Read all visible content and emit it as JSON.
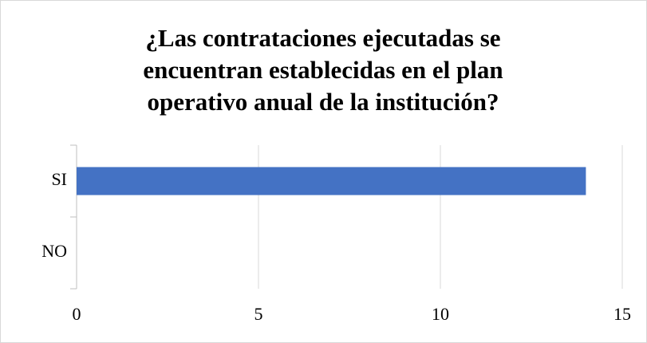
{
  "chart_data": {
    "type": "hbar",
    "title": "¿Las contrataciones ejecutadas se encuentran establecidas en el plan operativo anual de la institución?",
    "categories": [
      "SI",
      "NO"
    ],
    "values": [
      14,
      0
    ],
    "color": "#4472c4",
    "xlim": [
      0,
      15
    ],
    "xticks": [
      0,
      5,
      10,
      15
    ],
    "grid": true
  }
}
